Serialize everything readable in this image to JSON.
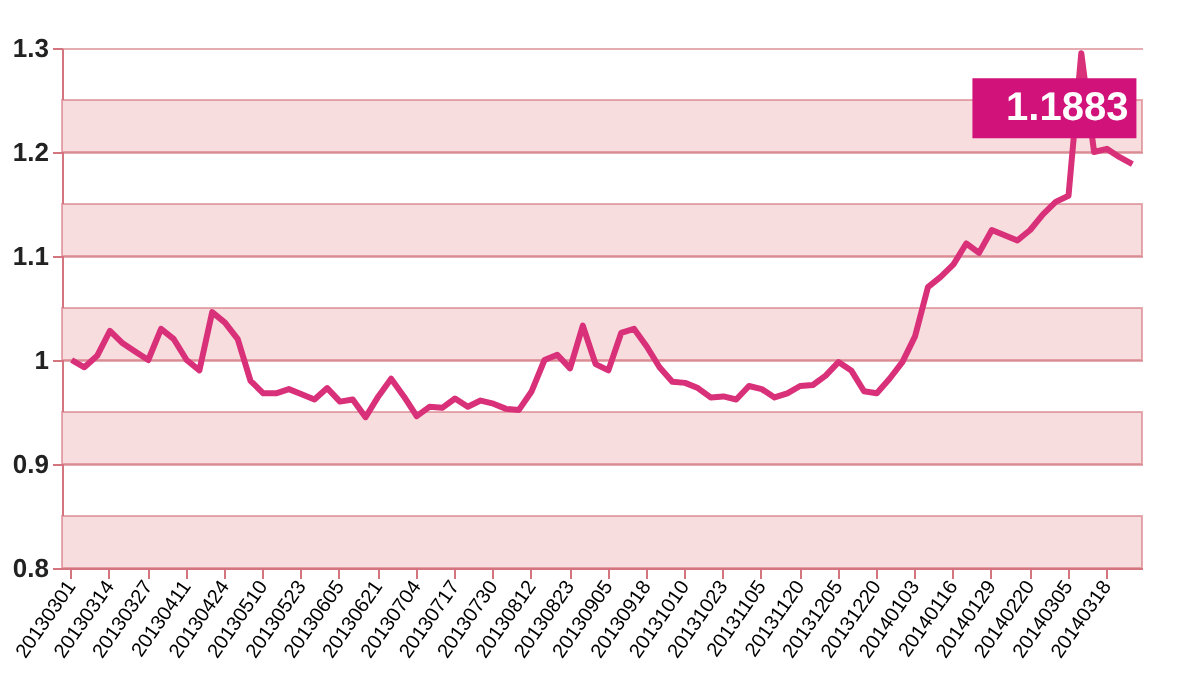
{
  "chart_data": {
    "type": "line",
    "categories": [
      "20130301",
      null,
      null,
      "20130314",
      null,
      null,
      "20130327",
      null,
      null,
      "20130411",
      null,
      null,
      "20130424",
      null,
      null,
      "20130510",
      null,
      null,
      "20130523",
      null,
      null,
      "20130605",
      null,
      null,
      "20130621",
      null,
      null,
      "20130704",
      null,
      null,
      "20130717",
      null,
      null,
      "20130730",
      null,
      null,
      "20130812",
      null,
      null,
      "20130823",
      null,
      null,
      "20130905",
      null,
      null,
      "20130918",
      null,
      null,
      "20131010",
      null,
      null,
      "20131023",
      null,
      null,
      "20131105",
      null,
      null,
      "20131120",
      null,
      null,
      "20131205",
      null,
      null,
      "20131220",
      null,
      null,
      "20140103",
      null,
      null,
      "20140116",
      null,
      null,
      "20140129",
      null,
      null,
      "20140220",
      null,
      null,
      "20140305",
      null,
      null,
      "20140318",
      null,
      null
    ],
    "series": [
      {
        "color": "#d9307a",
        "values": [
          1.0,
          0.993,
          1.004,
          1.028,
          1.016,
          1.008,
          1.0,
          1.03,
          1.02,
          1.0,
          0.99,
          1.046,
          1.036,
          1.02,
          0.98,
          0.968,
          0.968,
          0.972,
          0.967,
          0.962,
          0.973,
          0.96,
          0.962,
          0.945,
          0.965,
          0.982,
          0.965,
          0.946,
          0.955,
          0.954,
          0.963,
          0.955,
          0.961,
          0.958,
          0.953,
          0.952,
          0.97,
          1.0,
          1.005,
          0.992,
          1.033,
          0.996,
          0.99,
          1.026,
          1.03,
          1.013,
          0.993,
          0.979,
          0.978,
          0.973,
          0.964,
          0.965,
          0.962,
          0.975,
          0.972,
          0.964,
          0.968,
          0.975,
          0.976,
          0.985,
          0.998,
          0.99,
          0.97,
          0.968,
          0.982,
          0.998,
          1.023,
          1.07,
          1.08,
          1.092,
          1.112,
          1.103,
          1.125,
          1.12,
          1.115,
          1.125,
          1.14,
          1.152,
          1.158,
          1.295,
          1.2,
          1.203,
          1.195,
          1.1883
        ]
      }
    ],
    "ylim": [
      0.8,
      1.3
    ],
    "yticks": [
      0.8,
      0.9,
      1,
      1.1,
      1.2,
      1.3
    ],
    "grid": "y",
    "line_style": "solid",
    "marker": "none",
    "bands": [
      {
        "axis": "y",
        "from": 0.8,
        "to": 0.85,
        "color": "#f7dddd"
      },
      {
        "axis": "y",
        "from": 0.9,
        "to": 0.95,
        "color": "#f7dddd"
      },
      {
        "axis": "y",
        "from": 1.0,
        "to": 1.05,
        "color": "#f7dddd"
      },
      {
        "axis": "y",
        "from": 1.1,
        "to": 1.15,
        "color": "#f7dddd"
      },
      {
        "axis": "y",
        "from": 1.2,
        "to": 1.25,
        "color": "#f7dddd"
      }
    ],
    "annotations": [
      {
        "text": "1.1883",
        "y": 1.1883
      }
    ]
  }
}
